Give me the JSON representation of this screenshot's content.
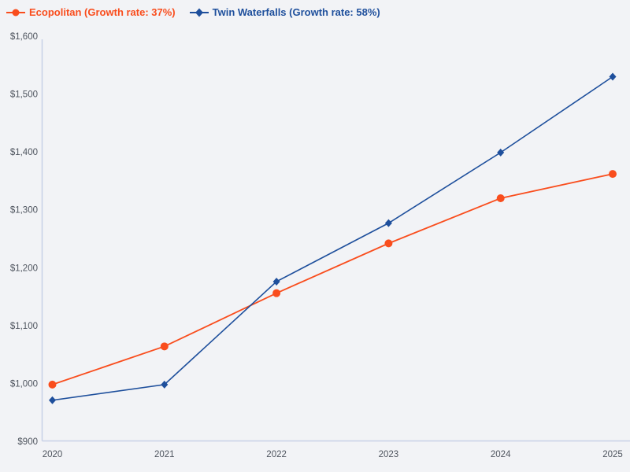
{
  "colors": {
    "background": "#f2f3f6",
    "axis_line": "#c7d1e6",
    "tick_label": "#4e545e"
  },
  "chart_data": {
    "type": "line",
    "x": [
      2020,
      2021,
      2022,
      2023,
      2024,
      2025
    ],
    "xtick_labels": [
      "2020",
      "2021",
      "2022",
      "2023",
      "2024",
      "2025"
    ],
    "ylim": [
      900,
      1600
    ],
    "ytick_step": 100,
    "ytick_labels": [
      "$900",
      "$1,000",
      "$1,100",
      "$1,200",
      "$1,300",
      "$1,400",
      "$1,500",
      "$1,600"
    ],
    "grid": false,
    "legend_position": "top-left",
    "series": [
      {
        "name": "Ecopolitan",
        "legend_label": "Ecopolitan (Growth rate: 37%)",
        "growth_rate": "37%",
        "color": "#f94d1d",
        "marker": "circle",
        "values": [
          998,
          1064,
          1156,
          1242,
          1320,
          1362
        ]
      },
      {
        "name": "Twin Waterfalls",
        "legend_label": "Twin Waterfalls (Growth rate: 58%)",
        "growth_rate": "58%",
        "color": "#1e4f9c",
        "marker": "diamond",
        "values": [
          971,
          998,
          1176,
          1277,
          1399,
          1530
        ]
      }
    ]
  }
}
